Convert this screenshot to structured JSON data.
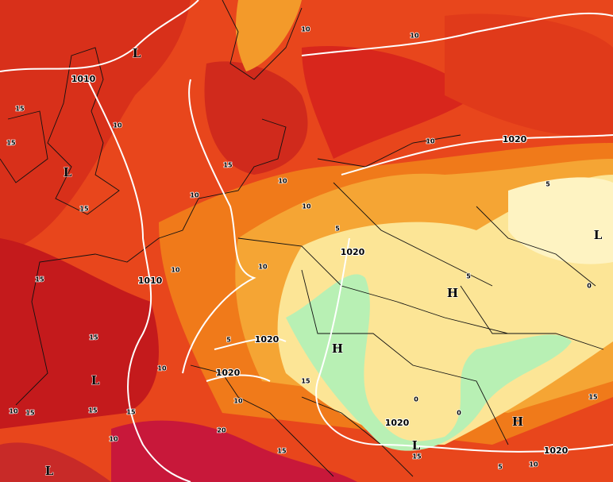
{
  "pressure_systems": [
    "L",
    "L",
    "L",
    "L",
    "L",
    "L",
    "H",
    "H",
    "H"
  ],
  "isobar_labels": [
    "1010",
    "1010",
    "1020",
    "1020",
    "1020",
    "1020",
    "1020",
    "1020"
  ],
  "isotherm_labels": [
    "10",
    "10",
    "15",
    "10",
    "15",
    "15",
    "10",
    "10",
    "10",
    "15",
    "10",
    "5",
    "5",
    "10",
    "10",
    "15",
    "5",
    "0",
    "15",
    "5",
    "10",
    "15",
    "0",
    "10",
    "15",
    "15",
    "15",
    "0",
    "10",
    "20",
    "10",
    "15",
    "15",
    "15",
    "10",
    "5"
  ]
}
